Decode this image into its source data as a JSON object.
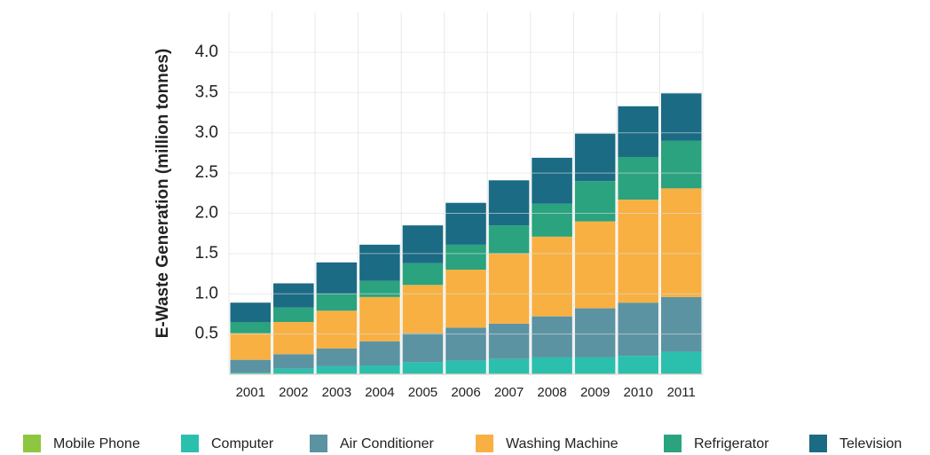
{
  "chart_data": {
    "type": "stacked_bar",
    "ylabel": "E-Waste Generation (million tonnes)",
    "categories": [
      "2001",
      "2002",
      "2003",
      "2004",
      "2005",
      "2006",
      "2007",
      "2008",
      "2009",
      "2010",
      "2011"
    ],
    "series": [
      {
        "name": "Mobile Phone",
        "color": "#8dc63f",
        "values": [
          0.01,
          0.01,
          0.01,
          0.01,
          0.01,
          0.01,
          0.01,
          0.01,
          0.01,
          0.01,
          0.01
        ]
      },
      {
        "name": "Computer",
        "color": "#2bbfae",
        "values": [
          0.01,
          0.06,
          0.09,
          0.1,
          0.14,
          0.16,
          0.18,
          0.2,
          0.2,
          0.22,
          0.27
        ]
      },
      {
        "name": "Air Conditioner",
        "color": "#5b93a3",
        "values": [
          0.16,
          0.18,
          0.22,
          0.3,
          0.36,
          0.41,
          0.44,
          0.51,
          0.61,
          0.66,
          0.68
        ]
      },
      {
        "name": "Washing Machine",
        "color": "#f8b043",
        "values": [
          0.33,
          0.4,
          0.47,
          0.55,
          0.6,
          0.72,
          0.87,
          0.99,
          1.08,
          1.28,
          1.35
        ]
      },
      {
        "name": "Refrigerator",
        "color": "#2aa37e",
        "values": [
          0.14,
          0.18,
          0.21,
          0.2,
          0.27,
          0.31,
          0.35,
          0.41,
          0.5,
          0.53,
          0.59
        ]
      },
      {
        "name": "Television",
        "color": "#1b6b85",
        "values": [
          0.24,
          0.3,
          0.39,
          0.45,
          0.47,
          0.52,
          0.56,
          0.57,
          0.59,
          0.63,
          0.59
        ]
      }
    ],
    "ylim": [
      0,
      4.5
    ],
    "yticks": [
      0.5,
      {
        "value": 1,
        "label": "1.0"
      },
      1.5,
      {
        "value": 2,
        "label": "2.0"
      },
      2.5,
      {
        "value": 3,
        "label": "3.0"
      },
      3.5,
      {
        "value": 4,
        "label": "4.0"
      }
    ],
    "grid": true
  }
}
